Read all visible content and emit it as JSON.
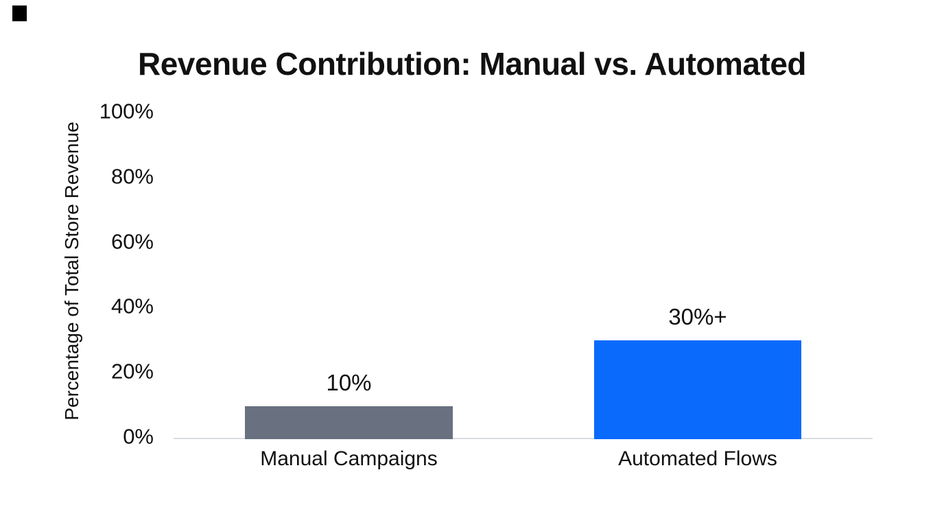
{
  "canvas": {
    "background": "#ffffff",
    "text_color": "#111111"
  },
  "corner_mark": {
    "color": "#000000"
  },
  "chart_data": {
    "type": "bar",
    "title": "Revenue Contribution: Manual vs. Automated",
    "xlabel": "",
    "ylabel": "Percentage of Total Store Revenue",
    "categories": [
      "Manual Campaigns",
      "Automated Flows"
    ],
    "values": [
      10,
      30
    ],
    "value_labels": [
      "10%",
      "30%+"
    ],
    "bar_colors": [
      "#697080",
      "#0a6afc"
    ],
    "ylim": [
      0,
      100
    ],
    "yticks": [
      {
        "value": 100,
        "label": "100%"
      },
      {
        "value": 80,
        "label": "80%"
      },
      {
        "value": 60,
        "label": "60%"
      },
      {
        "value": 40,
        "label": "40%"
      },
      {
        "value": 20,
        "label": "20%"
      },
      {
        "value": 0,
        "label": "0%"
      }
    ],
    "grid": false,
    "legend": "none",
    "axis_line_color": "#dadce0"
  }
}
